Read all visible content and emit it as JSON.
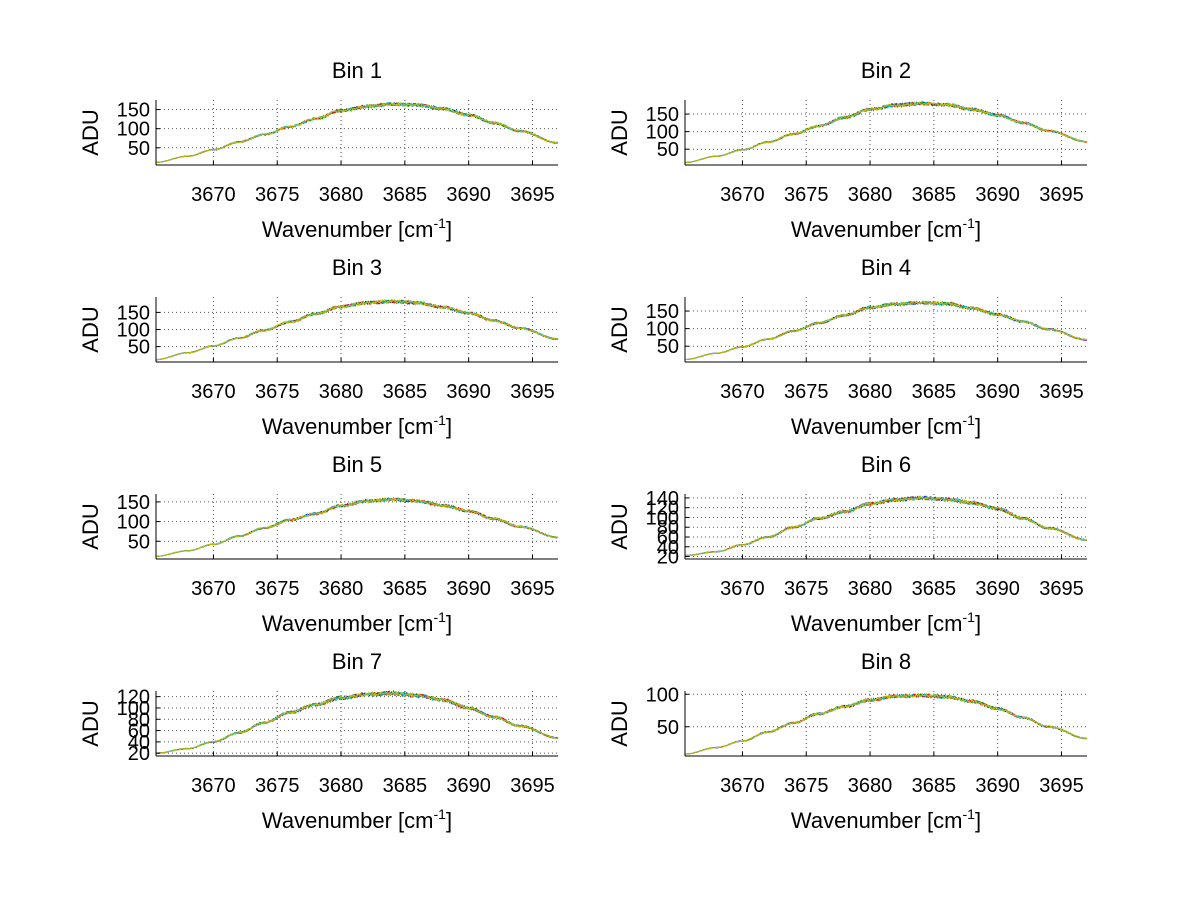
{
  "figure": {
    "background": "#ffffff",
    "axes_color": "#000000",
    "grid_color": "#555555"
  },
  "chart_data": [
    {
      "type": "line",
      "title": "Bin 1",
      "xlabel": "Wavenumber [cm",
      "xlabel_sup": "-1",
      "xlabel_end": "]",
      "ylabel": "ADU",
      "xlim": [
        3665.5,
        3697
      ],
      "ylim": [
        5,
        175
      ],
      "xticks": [
        3670,
        3675,
        3680,
        3685,
        3690,
        3695
      ],
      "xtick_labels": [
        "3670",
        "3675",
        "3680",
        "3685",
        "3690",
        "3695"
      ],
      "yticks": [
        50,
        100,
        150
      ],
      "ytick_labels": [
        "50",
        "100",
        "150"
      ],
      "grid": true,
      "series_colors": [
        "#0000ff",
        "#008000",
        "#ff0000",
        "#00bfbf",
        "#bfbf00"
      ],
      "x": [
        3665.5,
        3668,
        3670,
        3672,
        3674,
        3676,
        3678,
        3680,
        3682,
        3684,
        3686,
        3688,
        3690,
        3692,
        3694,
        3697
      ],
      "values": [
        12,
        28,
        45,
        65,
        85,
        105,
        126,
        147,
        158,
        164,
        162,
        152,
        136,
        115,
        94,
        63
      ]
    },
    {
      "type": "line",
      "title": "Bin 2",
      "xlabel": "Wavenumber [cm",
      "xlabel_sup": "-1",
      "xlabel_end": "]",
      "ylabel": "ADU",
      "xlim": [
        3665.5,
        3697
      ],
      "ylim": [
        5,
        190
      ],
      "xticks": [
        3670,
        3675,
        3680,
        3685,
        3690,
        3695
      ],
      "xtick_labels": [
        "3670",
        "3675",
        "3680",
        "3685",
        "3690",
        "3695"
      ],
      "yticks": [
        50,
        100,
        150
      ],
      "ytick_labels": [
        "50",
        "100",
        "150"
      ],
      "grid": true,
      "series_colors": [
        "#0000ff",
        "#008000",
        "#ff0000",
        "#00bfbf",
        "#bfbf00"
      ],
      "x": [
        3665.5,
        3668,
        3670,
        3672,
        3674,
        3676,
        3678,
        3680,
        3682,
        3684,
        3686,
        3688,
        3690,
        3692,
        3694,
        3697
      ],
      "values": [
        12,
        30,
        48,
        70,
        93,
        116,
        140,
        163,
        175,
        180,
        176,
        163,
        147,
        125,
        102,
        71
      ]
    },
    {
      "type": "line",
      "title": "Bin 3",
      "xlabel": "Wavenumber [cm",
      "xlabel_sup": "-1",
      "xlabel_end": "]",
      "ylabel": "ADU",
      "xlim": [
        3665.5,
        3697
      ],
      "ylim": [
        5,
        195
      ],
      "xticks": [
        3670,
        3675,
        3680,
        3685,
        3690,
        3695
      ],
      "xtick_labels": [
        "3670",
        "3675",
        "3680",
        "3685",
        "3690",
        "3695"
      ],
      "yticks": [
        50,
        100,
        150
      ],
      "ytick_labels": [
        "50",
        "100",
        "150"
      ],
      "grid": true,
      "series_colors": [
        "#0000ff",
        "#008000",
        "#ff0000",
        "#00bfbf",
        "#bfbf00"
      ],
      "x": [
        3665.5,
        3668,
        3670,
        3672,
        3674,
        3676,
        3678,
        3680,
        3682,
        3684,
        3686,
        3688,
        3690,
        3692,
        3694,
        3697
      ],
      "values": [
        12,
        32,
        52,
        75,
        98,
        122,
        146,
        167,
        178,
        182,
        178,
        165,
        148,
        126,
        104,
        72
      ]
    },
    {
      "type": "line",
      "title": "Bin 4",
      "xlabel": "Wavenumber [cm",
      "xlabel_sup": "-1",
      "xlabel_end": "]",
      "ylabel": "ADU",
      "xlim": [
        3665.5,
        3697
      ],
      "ylim": [
        5,
        190
      ],
      "xticks": [
        3670,
        3675,
        3680,
        3685,
        3690,
        3695
      ],
      "xtick_labels": [
        "3670",
        "3675",
        "3680",
        "3685",
        "3690",
        "3695"
      ],
      "yticks": [
        50,
        100,
        150
      ],
      "ytick_labels": [
        "50",
        "100",
        "150"
      ],
      "grid": true,
      "series_colors": [
        "#0000ff",
        "#008000",
        "#ff0000",
        "#00bfbf",
        "#bfbf00"
      ],
      "x": [
        3665.5,
        3668,
        3670,
        3672,
        3674,
        3676,
        3678,
        3680,
        3682,
        3684,
        3686,
        3688,
        3690,
        3692,
        3694,
        3697
      ],
      "values": [
        12,
        30,
        48,
        70,
        93,
        116,
        138,
        160,
        170,
        174,
        171,
        158,
        140,
        120,
        98,
        68
      ]
    },
    {
      "type": "line",
      "title": "Bin 5",
      "xlabel": "Wavenumber [cm",
      "xlabel_sup": "-1",
      "xlabel_end": "]",
      "ylabel": "ADU",
      "xlim": [
        3665.5,
        3697
      ],
      "ylim": [
        5,
        170
      ],
      "xticks": [
        3670,
        3675,
        3680,
        3685,
        3690,
        3695
      ],
      "xtick_labels": [
        "3670",
        "3675",
        "3680",
        "3685",
        "3690",
        "3695"
      ],
      "yticks": [
        50,
        100,
        150
      ],
      "ytick_labels": [
        "50",
        "100",
        "150"
      ],
      "grid": true,
      "series_colors": [
        "#0000ff",
        "#008000",
        "#ff0000",
        "#00bfbf",
        "#bfbf00"
      ],
      "x": [
        3665.5,
        3668,
        3670,
        3672,
        3674,
        3676,
        3678,
        3680,
        3682,
        3684,
        3686,
        3688,
        3690,
        3692,
        3694,
        3697
      ],
      "values": [
        12,
        26,
        42,
        63,
        84,
        104,
        120,
        140,
        152,
        156,
        152,
        141,
        127,
        107,
        87,
        60
      ]
    },
    {
      "type": "line",
      "title": "Bin 6",
      "xlabel": "Wavenumber [cm",
      "xlabel_sup": "-1",
      "xlabel_end": "]",
      "ylabel": "ADU",
      "xlim": [
        3665.5,
        3697
      ],
      "ylim": [
        15,
        148
      ],
      "xticks": [
        3670,
        3675,
        3680,
        3685,
        3690,
        3695
      ],
      "xtick_labels": [
        "3670",
        "3675",
        "3680",
        "3685",
        "3690",
        "3695"
      ],
      "yticks": [
        20,
        40,
        60,
        80,
        100,
        120,
        140
      ],
      "ytick_labels": [
        "20",
        "40",
        "60",
        "80",
        "100",
        "120",
        "140"
      ],
      "grid": true,
      "series_colors": [
        "#0000ff",
        "#008000",
        "#ff0000",
        "#00bfbf",
        "#bfbf00"
      ],
      "x": [
        3665.5,
        3668,
        3670,
        3672,
        3674,
        3676,
        3678,
        3680,
        3682,
        3684,
        3686,
        3688,
        3690,
        3692,
        3694,
        3697
      ],
      "values": [
        22,
        30,
        44,
        60,
        80,
        98,
        112,
        128,
        136,
        140,
        137,
        130,
        118,
        98,
        78,
        54
      ]
    },
    {
      "type": "line",
      "title": "Bin 7",
      "xlabel": "Wavenumber [cm",
      "xlabel_sup": "-1",
      "xlabel_end": "]",
      "ylabel": "ADU",
      "xlim": [
        3665.5,
        3697
      ],
      "ylim": [
        15,
        130
      ],
      "xticks": [
        3670,
        3675,
        3680,
        3685,
        3690,
        3695
      ],
      "xtick_labels": [
        "3670",
        "3675",
        "3680",
        "3685",
        "3690",
        "3695"
      ],
      "yticks": [
        20,
        40,
        60,
        80,
        100,
        120
      ],
      "ytick_labels": [
        "20",
        "40",
        "60",
        "80",
        "100",
        "120"
      ],
      "grid": true,
      "series_colors": [
        "#0000ff",
        "#008000",
        "#ff0000",
        "#00bfbf",
        "#bfbf00"
      ],
      "x": [
        3665.5,
        3668,
        3670,
        3672,
        3674,
        3676,
        3678,
        3680,
        3682,
        3684,
        3686,
        3688,
        3690,
        3692,
        3694,
        3697
      ],
      "values": [
        20,
        28,
        40,
        56,
        74,
        92,
        106,
        118,
        124,
        126,
        122,
        114,
        100,
        84,
        68,
        47
      ]
    },
    {
      "type": "line",
      "title": "Bin 8",
      "xlabel": "Wavenumber [cm",
      "xlabel_sup": "-1",
      "xlabel_end": "]",
      "ylabel": "ADU",
      "xlim": [
        3665.5,
        3697
      ],
      "ylim": [
        5,
        105
      ],
      "xticks": [
        3670,
        3675,
        3680,
        3685,
        3690,
        3695
      ],
      "xtick_labels": [
        "3670",
        "3675",
        "3680",
        "3685",
        "3690",
        "3695"
      ],
      "yticks": [
        50,
        100
      ],
      "ytick_labels": [
        "50",
        "100"
      ],
      "grid": true,
      "series_colors": [
        "#0000ff",
        "#008000",
        "#ff0000",
        "#00bfbf",
        "#bfbf00"
      ],
      "x": [
        3665.5,
        3668,
        3670,
        3672,
        3674,
        3676,
        3678,
        3680,
        3682,
        3684,
        3686,
        3688,
        3690,
        3692,
        3694,
        3697
      ],
      "values": [
        8,
        18,
        28,
        42,
        56,
        70,
        81,
        91,
        97,
        98,
        96,
        89,
        78,
        64,
        50,
        32
      ]
    }
  ]
}
